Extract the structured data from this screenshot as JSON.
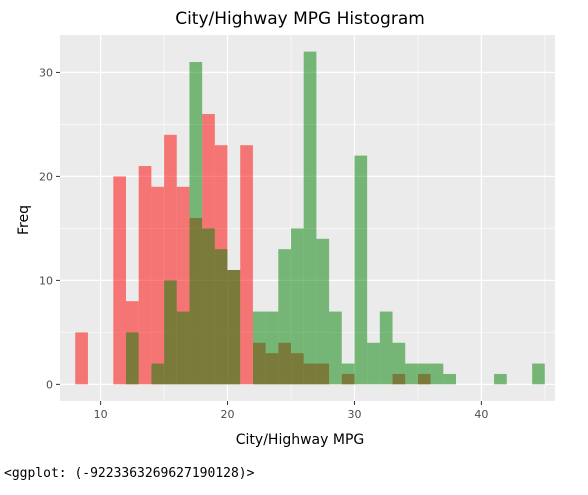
{
  "chart_data": {
    "type": "histogram",
    "title": "City/Highway MPG Histogram",
    "xlabel": "City/Highway MPG",
    "ylabel": "Freq",
    "xlim": [
      6.8,
      45.8
    ],
    "ylim": [
      -1.6,
      33.6
    ],
    "x_ticks": [
      10,
      20,
      30,
      40
    ],
    "y_ticks": [
      0,
      10,
      20,
      30
    ],
    "bin_width": 1,
    "grid": true,
    "background": "#ebebeb",
    "grid_color": "#ffffff",
    "series": [
      {
        "key": "city",
        "color": "#f8766d",
        "fill": "rgba(255,0,0,0.5)",
        "bins": [
          {
            "x0": 8,
            "count": 5
          },
          {
            "x0": 11,
            "count": 20
          },
          {
            "x0": 12,
            "count": 8
          },
          {
            "x0": 13,
            "count": 21
          },
          {
            "x0": 14,
            "count": 19
          },
          {
            "x0": 15,
            "count": 24
          },
          {
            "x0": 16,
            "count": 19
          },
          {
            "x0": 17,
            "count": 16
          },
          {
            "x0": 18,
            "count": 26
          },
          {
            "x0": 19,
            "count": 23
          },
          {
            "x0": 20,
            "count": 11
          },
          {
            "x0": 21,
            "count": 23
          },
          {
            "x0": 22,
            "count": 4
          },
          {
            "x0": 23,
            "count": 3
          },
          {
            "x0": 24,
            "count": 4
          },
          {
            "x0": 25,
            "count": 3
          },
          {
            "x0": 26,
            "count": 2
          },
          {
            "x0": 27,
            "count": 2
          },
          {
            "x0": 29,
            "count": 1
          },
          {
            "x0": 33,
            "count": 1
          },
          {
            "x0": 35,
            "count": 1
          }
        ]
      },
      {
        "key": "highway",
        "color": "#4caf50",
        "fill": "rgba(0,128,0,0.5)",
        "bins": [
          {
            "x0": 12,
            "count": 5
          },
          {
            "x0": 14,
            "count": 2
          },
          {
            "x0": 15,
            "count": 10
          },
          {
            "x0": 16,
            "count": 7
          },
          {
            "x0": 17,
            "count": 31
          },
          {
            "x0": 18,
            "count": 15
          },
          {
            "x0": 19,
            "count": 13
          },
          {
            "x0": 20,
            "count": 11
          },
          {
            "x0": 22,
            "count": 7
          },
          {
            "x0": 23,
            "count": 7
          },
          {
            "x0": 24,
            "count": 13
          },
          {
            "x0": 25,
            "count": 15
          },
          {
            "x0": 26,
            "count": 32
          },
          {
            "x0": 27,
            "count": 14
          },
          {
            "x0": 28,
            "count": 7
          },
          {
            "x0": 29,
            "count": 2
          },
          {
            "x0": 30,
            "count": 22
          },
          {
            "x0": 31,
            "count": 4
          },
          {
            "x0": 32,
            "count": 7
          },
          {
            "x0": 33,
            "count": 4
          },
          {
            "x0": 34,
            "count": 2
          },
          {
            "x0": 35,
            "count": 2
          },
          {
            "x0": 36,
            "count": 2
          },
          {
            "x0": 37,
            "count": 1
          },
          {
            "x0": 41,
            "count": 1
          },
          {
            "x0": 44,
            "count": 2
          }
        ]
      }
    ]
  },
  "console_output": "<ggplot: (-9223363269627190128)>"
}
